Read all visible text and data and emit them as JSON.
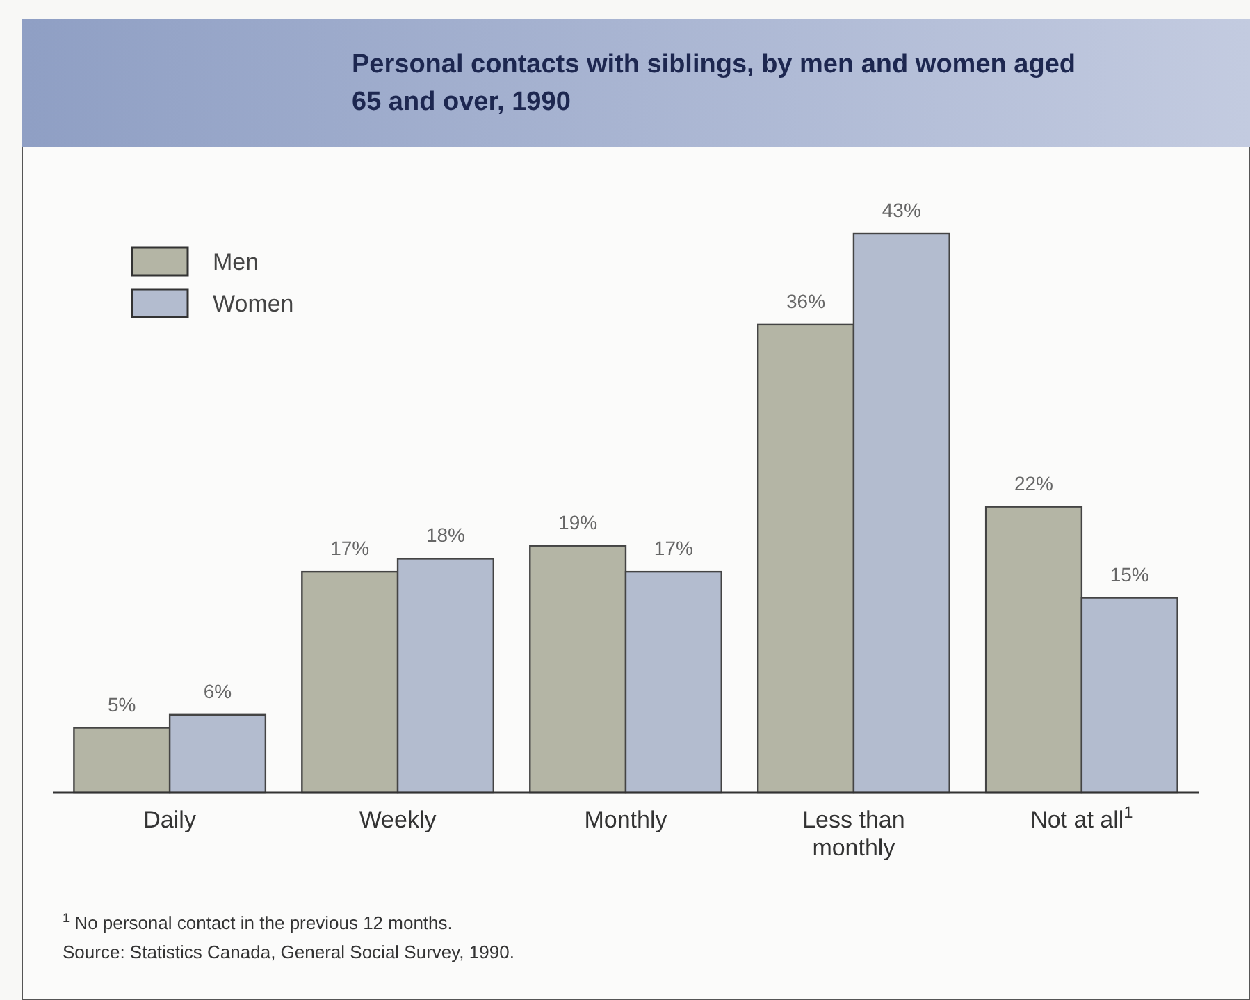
{
  "chart_data": {
    "type": "bar",
    "title": "Personal contacts with siblings, by men and women aged 65 and over, 1990",
    "categories": [
      "Daily",
      "Weekly",
      "Monthly",
      "Less than monthly",
      "Not at all$^{1}$"
    ],
    "series": [
      {
        "name": "Men",
        "color": "#b4b5a5",
        "values": [
          5,
          17,
          19,
          36,
          22
        ],
        "value_labels": [
          "5%",
          "17%",
          "19%",
          "36%",
          "22%"
        ]
      },
      {
        "name": "Women",
        "color": "#b3bccf",
        "values": [
          6,
          18,
          17,
          43,
          15
        ],
        "value_labels": [
          "6%",
          "18%",
          "17%",
          "43%",
          "15%"
        ]
      }
    ],
    "legend": "top left",
    "annotations": [
      "$^{1}$ No personal contact in the previous 12 months.",
      "Source: Statistics Canada, General Social Survey, 1990."
    ]
  }
}
